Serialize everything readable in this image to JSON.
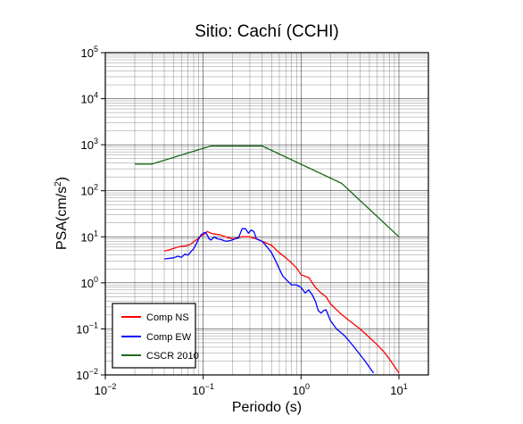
{
  "chart_data": {
    "type": "line",
    "title": "Sitio: Cachí (CCHI)",
    "xlabel": "Periodo (s)",
    "ylabel_base": "PSA(cm/s",
    "ylabel_sup": "2",
    "ylabel_end": ")",
    "x_scale": "log",
    "y_scale": "log",
    "xlim": [
      0.01,
      20
    ],
    "ylim": [
      0.01,
      100000
    ],
    "grid": true,
    "legend_position": "bottom-left",
    "x_ticks": [
      {
        "base": "10",
        "exp": "−2",
        "value": 0.01
      },
      {
        "base": "10",
        "exp": "−1",
        "value": 0.1
      },
      {
        "base": "10",
        "exp": "0",
        "value": 1
      },
      {
        "base": "10",
        "exp": "1",
        "value": 10
      }
    ],
    "y_ticks": [
      {
        "base": "10",
        "exp": "−2",
        "value": 0.01
      },
      {
        "base": "10",
        "exp": "−1",
        "value": 0.1
      },
      {
        "base": "10",
        "exp": "0",
        "value": 1
      },
      {
        "base": "10",
        "exp": "1",
        "value": 10
      },
      {
        "base": "10",
        "exp": "2",
        "value": 100
      },
      {
        "base": "10",
        "exp": "3",
        "value": 1000
      },
      {
        "base": "10",
        "exp": "4",
        "value": 10000
      },
      {
        "base": "10",
        "exp": "5",
        "value": 100000
      }
    ],
    "series": [
      {
        "name": "Comp NS",
        "color": "#ff0000",
        "points": [
          [
            0.04,
            4.9
          ],
          [
            0.045,
            5.2
          ],
          [
            0.05,
            5.6
          ],
          [
            0.055,
            6.0
          ],
          [
            0.06,
            6.2
          ],
          [
            0.065,
            6.3
          ],
          [
            0.07,
            6.5
          ],
          [
            0.075,
            7.0
          ],
          [
            0.08,
            7.8
          ],
          [
            0.085,
            8.5
          ],
          [
            0.09,
            9.5
          ],
          [
            0.095,
            10.5
          ],
          [
            0.1,
            11.0
          ],
          [
            0.105,
            12.0
          ],
          [
            0.11,
            13.0
          ],
          [
            0.12,
            12.0
          ],
          [
            0.13,
            11.5
          ],
          [
            0.14,
            11.2
          ],
          [
            0.15,
            11.0
          ],
          [
            0.17,
            10.0
          ],
          [
            0.2,
            9.0
          ],
          [
            0.25,
            10.0
          ],
          [
            0.3,
            10.0
          ],
          [
            0.35,
            9.0
          ],
          [
            0.4,
            8.0
          ],
          [
            0.5,
            6.5
          ],
          [
            0.6,
            4.5
          ],
          [
            0.7,
            3.5
          ],
          [
            0.8,
            2.7
          ],
          [
            0.9,
            2.1
          ],
          [
            1.0,
            1.5
          ],
          [
            1.2,
            1.3
          ],
          [
            1.4,
            0.8
          ],
          [
            1.6,
            0.6
          ],
          [
            1.8,
            0.5
          ],
          [
            2.0,
            0.35
          ],
          [
            2.5,
            0.22
          ],
          [
            3.0,
            0.16
          ],
          [
            4.0,
            0.1
          ],
          [
            5.0,
            0.065
          ],
          [
            6.0,
            0.045
          ],
          [
            7.0,
            0.032
          ],
          [
            8.0,
            0.022
          ],
          [
            10.0,
            0.011
          ]
        ]
      },
      {
        "name": "Comp EW",
        "color": "#0000ff",
        "points": [
          [
            0.04,
            3.3
          ],
          [
            0.05,
            3.5
          ],
          [
            0.055,
            3.8
          ],
          [
            0.06,
            3.6
          ],
          [
            0.065,
            4.2
          ],
          [
            0.07,
            4.0
          ],
          [
            0.075,
            4.8
          ],
          [
            0.08,
            5.5
          ],
          [
            0.085,
            7.0
          ],
          [
            0.09,
            9.0
          ],
          [
            0.095,
            11.0
          ],
          [
            0.1,
            12.0
          ],
          [
            0.105,
            12.5
          ],
          [
            0.11,
            11.0
          ],
          [
            0.115,
            9.0
          ],
          [
            0.12,
            8.5
          ],
          [
            0.13,
            10.0
          ],
          [
            0.14,
            9.0
          ],
          [
            0.15,
            8.8
          ],
          [
            0.17,
            8.0
          ],
          [
            0.19,
            8.2
          ],
          [
            0.21,
            9.0
          ],
          [
            0.23,
            9.5
          ],
          [
            0.25,
            15.0
          ],
          [
            0.27,
            15.0
          ],
          [
            0.29,
            12.0
          ],
          [
            0.31,
            14.0
          ],
          [
            0.33,
            13.0
          ],
          [
            0.35,
            9.0
          ],
          [
            0.4,
            8.0
          ],
          [
            0.45,
            6.0
          ],
          [
            0.5,
            4.5
          ],
          [
            0.55,
            3.0
          ],
          [
            0.6,
            2.0
          ],
          [
            0.65,
            1.4
          ],
          [
            0.7,
            1.2
          ],
          [
            0.8,
            0.9
          ],
          [
            0.9,
            0.9
          ],
          [
            1.0,
            0.8
          ],
          [
            1.1,
            0.6
          ],
          [
            1.2,
            0.7
          ],
          [
            1.3,
            0.55
          ],
          [
            1.4,
            0.4
          ],
          [
            1.5,
            0.25
          ],
          [
            1.6,
            0.22
          ],
          [
            1.7,
            0.25
          ],
          [
            1.8,
            0.26
          ],
          [
            2.0,
            0.15
          ],
          [
            2.3,
            0.1
          ],
          [
            2.8,
            0.07
          ],
          [
            3.5,
            0.04
          ],
          [
            4.5,
            0.02
          ],
          [
            5.5,
            0.011
          ]
        ]
      },
      {
        "name": "CSCR 2010",
        "color": "#1b6b1b",
        "points": [
          [
            0.02,
            380
          ],
          [
            0.03,
            380
          ],
          [
            0.12,
            940
          ],
          [
            0.4,
            940
          ],
          [
            2.6,
            145
          ],
          [
            10.0,
            10
          ]
        ]
      }
    ]
  }
}
